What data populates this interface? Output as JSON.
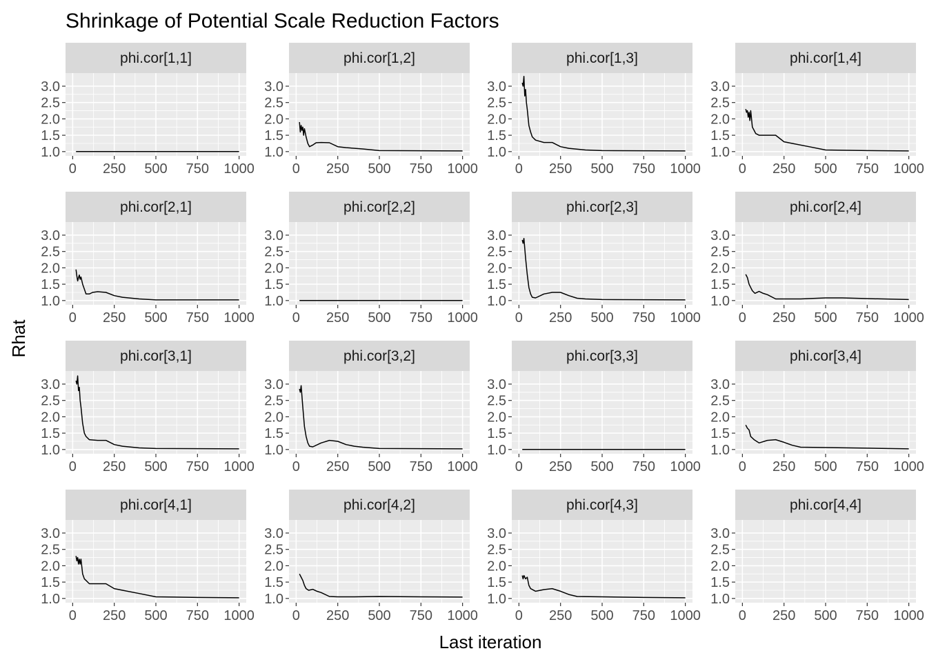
{
  "chart_data": {
    "type": "line",
    "title": "Shrinkage of Potential Scale Reduction Factors",
    "xlabel": "Last iteration",
    "ylabel": "Rhat",
    "xlim": [
      0,
      1000
    ],
    "ylim": [
      1.0,
      3.0
    ],
    "x_ticks": [
      0,
      250,
      500,
      750,
      1000
    ],
    "y_ticks": [
      1.0,
      1.5,
      2.0,
      2.5,
      3.0
    ],
    "x_tick_labels": [
      "0",
      "250",
      "500",
      "750",
      "1000"
    ],
    "y_tick_labels": [
      "1.0",
      "1.5",
      "2.0",
      "2.5",
      "3.0"
    ],
    "grid": true,
    "legend": "none",
    "colors": {
      "panel_bg": "#EBEBEB",
      "strip_bg": "#D9D9D9",
      "grid": "#FFFFFF",
      "line": "#000000",
      "tick_text": "#4D4D4D"
    },
    "facet_grid": {
      "rows": 4,
      "cols": 4
    },
    "panels": [
      {
        "label": "phi.cor[1,1]",
        "points": [
          [
            20,
            1.0
          ],
          [
            1000,
            1.0
          ]
        ]
      },
      {
        "label": "phi.cor[1,2]",
        "points": [
          [
            20,
            1.9
          ],
          [
            25,
            1.6
          ],
          [
            30,
            1.8
          ],
          [
            35,
            1.65
          ],
          [
            40,
            1.75
          ],
          [
            45,
            1.5
          ],
          [
            50,
            1.7
          ],
          [
            60,
            1.45
          ],
          [
            70,
            1.25
          ],
          [
            80,
            1.15
          ],
          [
            100,
            1.2
          ],
          [
            120,
            1.27
          ],
          [
            150,
            1.28
          ],
          [
            200,
            1.27
          ],
          [
            250,
            1.15
          ],
          [
            300,
            1.12
          ],
          [
            400,
            1.08
          ],
          [
            500,
            1.03
          ],
          [
            1000,
            1.02
          ]
        ]
      },
      {
        "label": "phi.cor[1,3]",
        "points": [
          [
            20,
            3.1
          ],
          [
            25,
            3.0
          ],
          [
            30,
            3.3
          ],
          [
            35,
            2.7
          ],
          [
            40,
            2.9
          ],
          [
            45,
            2.5
          ],
          [
            50,
            2.3
          ],
          [
            60,
            1.8
          ],
          [
            70,
            1.6
          ],
          [
            80,
            1.45
          ],
          [
            100,
            1.35
          ],
          [
            150,
            1.28
          ],
          [
            200,
            1.28
          ],
          [
            250,
            1.15
          ],
          [
            300,
            1.1
          ],
          [
            400,
            1.05
          ],
          [
            500,
            1.03
          ],
          [
            1000,
            1.02
          ]
        ]
      },
      {
        "label": "phi.cor[1,4]",
        "points": [
          [
            20,
            2.3
          ],
          [
            25,
            2.2
          ],
          [
            30,
            2.25
          ],
          [
            35,
            2.05
          ],
          [
            40,
            2.2
          ],
          [
            45,
            1.95
          ],
          [
            50,
            2.25
          ],
          [
            60,
            1.75
          ],
          [
            70,
            1.65
          ],
          [
            80,
            1.55
          ],
          [
            100,
            1.5
          ],
          [
            150,
            1.5
          ],
          [
            200,
            1.5
          ],
          [
            250,
            1.3
          ],
          [
            300,
            1.25
          ],
          [
            400,
            1.15
          ],
          [
            500,
            1.05
          ],
          [
            750,
            1.03
          ],
          [
            1000,
            1.02
          ]
        ]
      },
      {
        "label": "phi.cor[2,1]",
        "points": [
          [
            20,
            1.95
          ],
          [
            25,
            1.75
          ],
          [
            30,
            1.6
          ],
          [
            35,
            1.7
          ],
          [
            40,
            1.78
          ],
          [
            45,
            1.65
          ],
          [
            50,
            1.72
          ],
          [
            60,
            1.5
          ],
          [
            70,
            1.35
          ],
          [
            80,
            1.2
          ],
          [
            100,
            1.2
          ],
          [
            120,
            1.25
          ],
          [
            150,
            1.27
          ],
          [
            200,
            1.25
          ],
          [
            250,
            1.15
          ],
          [
            300,
            1.1
          ],
          [
            400,
            1.05
          ],
          [
            500,
            1.02
          ],
          [
            1000,
            1.02
          ]
        ]
      },
      {
        "label": "phi.cor[2,2]",
        "points": [
          [
            20,
            1.0
          ],
          [
            1000,
            1.0
          ]
        ]
      },
      {
        "label": "phi.cor[2,3]",
        "points": [
          [
            20,
            2.85
          ],
          [
            25,
            2.75
          ],
          [
            30,
            2.9
          ],
          [
            40,
            2.3
          ],
          [
            50,
            1.8
          ],
          [
            60,
            1.4
          ],
          [
            70,
            1.2
          ],
          [
            80,
            1.1
          ],
          [
            100,
            1.08
          ],
          [
            150,
            1.2
          ],
          [
            200,
            1.25
          ],
          [
            250,
            1.25
          ],
          [
            300,
            1.15
          ],
          [
            350,
            1.07
          ],
          [
            400,
            1.05
          ],
          [
            500,
            1.03
          ],
          [
            1000,
            1.02
          ]
        ]
      },
      {
        "label": "phi.cor[2,4]",
        "points": [
          [
            20,
            1.8
          ],
          [
            30,
            1.7
          ],
          [
            40,
            1.5
          ],
          [
            50,
            1.4
          ],
          [
            60,
            1.3
          ],
          [
            75,
            1.22
          ],
          [
            100,
            1.28
          ],
          [
            125,
            1.22
          ],
          [
            150,
            1.18
          ],
          [
            200,
            1.05
          ],
          [
            250,
            1.05
          ],
          [
            350,
            1.05
          ],
          [
            500,
            1.08
          ],
          [
            600,
            1.08
          ],
          [
            750,
            1.06
          ],
          [
            1000,
            1.03
          ]
        ]
      },
      {
        "label": "phi.cor[3,1]",
        "points": [
          [
            20,
            3.1
          ],
          [
            25,
            3.0
          ],
          [
            30,
            3.25
          ],
          [
            35,
            2.8
          ],
          [
            40,
            2.9
          ],
          [
            45,
            2.5
          ],
          [
            50,
            2.3
          ],
          [
            60,
            1.8
          ],
          [
            70,
            1.5
          ],
          [
            80,
            1.4
          ],
          [
            100,
            1.3
          ],
          [
            150,
            1.28
          ],
          [
            200,
            1.28
          ],
          [
            250,
            1.15
          ],
          [
            300,
            1.1
          ],
          [
            400,
            1.05
          ],
          [
            500,
            1.03
          ],
          [
            1000,
            1.02
          ]
        ]
      },
      {
        "label": "phi.cor[3,2]",
        "points": [
          [
            20,
            2.85
          ],
          [
            25,
            2.75
          ],
          [
            30,
            2.95
          ],
          [
            40,
            2.3
          ],
          [
            50,
            1.7
          ],
          [
            60,
            1.4
          ],
          [
            70,
            1.2
          ],
          [
            80,
            1.1
          ],
          [
            100,
            1.08
          ],
          [
            150,
            1.2
          ],
          [
            200,
            1.28
          ],
          [
            250,
            1.25
          ],
          [
            300,
            1.15
          ],
          [
            350,
            1.1
          ],
          [
            400,
            1.07
          ],
          [
            500,
            1.03
          ],
          [
            1000,
            1.02
          ]
        ]
      },
      {
        "label": "phi.cor[3,3]",
        "points": [
          [
            20,
            1.0
          ],
          [
            1000,
            1.0
          ]
        ]
      },
      {
        "label": "phi.cor[3,4]",
        "points": [
          [
            20,
            1.75
          ],
          [
            30,
            1.65
          ],
          [
            40,
            1.6
          ],
          [
            50,
            1.4
          ],
          [
            70,
            1.3
          ],
          [
            100,
            1.2
          ],
          [
            150,
            1.28
          ],
          [
            200,
            1.3
          ],
          [
            250,
            1.22
          ],
          [
            300,
            1.13
          ],
          [
            350,
            1.07
          ],
          [
            500,
            1.06
          ],
          [
            750,
            1.04
          ],
          [
            1000,
            1.02
          ]
        ]
      },
      {
        "label": "phi.cor[4,1]",
        "points": [
          [
            20,
            2.3
          ],
          [
            25,
            2.15
          ],
          [
            30,
            2.25
          ],
          [
            35,
            2.05
          ],
          [
            40,
            2.2
          ],
          [
            45,
            2.05
          ],
          [
            50,
            2.2
          ],
          [
            60,
            1.75
          ],
          [
            70,
            1.6
          ],
          [
            80,
            1.55
          ],
          [
            100,
            1.45
          ],
          [
            150,
            1.45
          ],
          [
            200,
            1.45
          ],
          [
            250,
            1.3
          ],
          [
            300,
            1.25
          ],
          [
            400,
            1.15
          ],
          [
            500,
            1.05
          ],
          [
            750,
            1.03
          ],
          [
            1000,
            1.02
          ]
        ]
      },
      {
        "label": "phi.cor[4,2]",
        "points": [
          [
            20,
            1.75
          ],
          [
            30,
            1.65
          ],
          [
            40,
            1.55
          ],
          [
            50,
            1.4
          ],
          [
            60,
            1.3
          ],
          [
            75,
            1.25
          ],
          [
            100,
            1.28
          ],
          [
            125,
            1.22
          ],
          [
            150,
            1.18
          ],
          [
            200,
            1.06
          ],
          [
            250,
            1.05
          ],
          [
            350,
            1.05
          ],
          [
            500,
            1.06
          ],
          [
            750,
            1.05
          ],
          [
            1000,
            1.04
          ]
        ]
      },
      {
        "label": "phi.cor[4,3]",
        "points": [
          [
            20,
            1.7
          ],
          [
            25,
            1.6
          ],
          [
            30,
            1.7
          ],
          [
            40,
            1.6
          ],
          [
            50,
            1.65
          ],
          [
            60,
            1.4
          ],
          [
            70,
            1.3
          ],
          [
            100,
            1.22
          ],
          [
            150,
            1.27
          ],
          [
            200,
            1.3
          ],
          [
            250,
            1.22
          ],
          [
            300,
            1.12
          ],
          [
            350,
            1.06
          ],
          [
            500,
            1.05
          ],
          [
            750,
            1.03
          ],
          [
            1000,
            1.02
          ]
        ]
      },
      {
        "label": "phi.cor[4,4]",
        "points": []
      }
    ]
  }
}
